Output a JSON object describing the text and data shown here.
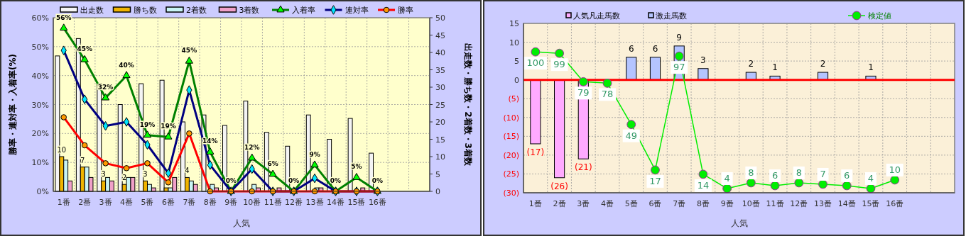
{
  "chart_data": [
    {
      "type": "bar",
      "categories": [
        "1番",
        "2番",
        "3番",
        "4番",
        "5番",
        "6番",
        "7番",
        "8番",
        "9番",
        "10番",
        "11番",
        "12番",
        "13番",
        "14番",
        "15番",
        "16番",
        null,
        null
      ],
      "xlabel": "人気",
      "ylabel": "勝率・連対率・入着率(%)",
      "y2label": "出走数・勝ち数・2着数・3着数",
      "ylim": [
        0,
        60
      ],
      "yticks": [
        {
          "value": 0,
          "label": "0%"
        },
        {
          "value": 10,
          "label": "10%"
        },
        {
          "value": 20,
          "label": "20%"
        },
        {
          "value": 30,
          "label": "30%"
        },
        {
          "value": 40,
          "label": "40%"
        },
        {
          "value": 50,
          "label": "50%"
        },
        {
          "value": 60,
          "label": "60%"
        }
      ],
      "y2lim": [
        0,
        50
      ],
      "y2ticks": [
        0,
        5,
        10,
        15,
        20,
        25,
        30,
        35,
        40,
        45,
        50
      ],
      "grid": true,
      "legend": "top",
      "series": [
        {
          "name": "出走数",
          "axis": "y2",
          "color": "#f4f4f4",
          "values": [
            39,
            44,
            31,
            25,
            31,
            32,
            20,
            22,
            19,
            26,
            17,
            13,
            22,
            15,
            21,
            11,
            null,
            null
          ]
        },
        {
          "name": "勝ち数",
          "axis": "y2",
          "color": "#f0b400",
          "values": [
            10,
            7,
            3,
            2,
            3,
            1,
            4,
            0,
            0,
            0,
            0,
            0,
            0,
            0,
            0,
            0,
            null,
            null
          ],
          "value_labels": [
            "10",
            "7",
            "3",
            "2",
            "3",
            null,
            "4",
            null,
            null,
            null,
            null,
            null,
            null,
            null,
            null,
            null,
            null,
            null
          ]
        },
        {
          "name": "2着数",
          "axis": "y2",
          "color": "#c8f4f4",
          "values": [
            9,
            7,
            4,
            4,
            2,
            1,
            3,
            2,
            0,
            2,
            0,
            0,
            1,
            0,
            0,
            0,
            null,
            null
          ]
        },
        {
          "name": "3着数",
          "axis": "y2",
          "color": "#f0a0c8",
          "values": [
            3,
            4,
            3,
            4,
            1,
            4,
            2,
            1,
            0,
            1,
            1,
            0,
            1,
            0,
            1,
            0,
            null,
            null
          ]
        },
        {
          "name": "入着率",
          "type": "line",
          "color": "#008000",
          "marker": "triangle",
          "values": [
            56.4,
            45.5,
            32.3,
            40,
            19.4,
            18.8,
            45,
            13.6,
            0,
            11.5,
            5.9,
            0,
            9.1,
            0,
            4.8,
            0,
            null,
            null
          ],
          "value_labels": [
            "56%",
            "45%",
            "32%",
            "40%",
            "19%",
            "19%",
            "45%",
            "14%",
            "0%",
            "12%",
            "6%",
            "0%",
            "9%",
            "0%",
            "5%",
            "0%",
            null,
            null
          ]
        },
        {
          "name": "連対率",
          "type": "line",
          "color": "#000080",
          "marker": "diamond",
          "values": [
            48.7,
            31.8,
            22.6,
            24,
            16.1,
            6.3,
            35,
            9.1,
            0,
            7.7,
            0,
            0,
            4.5,
            0,
            0,
            0,
            null,
            null
          ]
        },
        {
          "name": "勝率",
          "type": "line",
          "color": "#ff0000",
          "marker": "circle",
          "values": [
            25.6,
            15.9,
            9.7,
            8,
            9.7,
            3.1,
            20,
            0,
            0,
            0,
            0,
            0,
            0,
            0,
            0,
            0,
            null,
            null
          ]
        }
      ]
    },
    {
      "type": "bar",
      "stacked": true,
      "categories": [
        "1番",
        "2番",
        "3番",
        "4番",
        "5番",
        "6番",
        "7番",
        "8番",
        "9番",
        "10番",
        "11番",
        "12番",
        "13番",
        "14番",
        "15番",
        "16番",
        null,
        null
      ],
      "xlabel": "人気",
      "ylim": [
        -30,
        15
      ],
      "y2lim": [
        1,
        120
      ],
      "tick_labels": "xy",
      "data_labels": true,
      "yticks": [
        15,
        10,
        5,
        0,
        {
          "value": -5,
          "label": "(5)"
        },
        {
          "value": -10,
          "label": "(10)"
        },
        {
          "value": -15,
          "label": "(15)"
        },
        {
          "value": -20,
          "label": "(20)"
        },
        {
          "value": -25,
          "label": "(25)"
        },
        {
          "value": -30,
          "label": "(30)"
        }
      ],
      "grid": true,
      "legend": "top",
      "ref_lines": [
        {
          "axis": "y",
          "value": 0,
          "color": "#ff0000"
        }
      ],
      "series": [
        {
          "name": "人気凡走馬数",
          "color": "#ffaaff",
          "values": [
            -17,
            -26,
            -21,
            null,
            null,
            null,
            null,
            null,
            null,
            null,
            null,
            null,
            null,
            null,
            null,
            null,
            null,
            null
          ],
          "value_labels": [
            "(17)",
            "(26)",
            "(21)",
            null,
            null,
            null,
            null,
            null,
            null,
            null,
            null,
            null,
            null,
            null,
            null,
            null,
            null,
            null
          ]
        },
        {
          "name": "激走馬数",
          "color": "#b4c4ff",
          "values": [
            null,
            null,
            null,
            null,
            6,
            6,
            9,
            3,
            null,
            2,
            1,
            null,
            2,
            null,
            1,
            null,
            null,
            null
          ],
          "value_labels": [
            null,
            null,
            null,
            null,
            "6",
            "6",
            "9",
            "3",
            null,
            "2",
            "1",
            null,
            "2",
            null,
            "1",
            null,
            null,
            null
          ]
        },
        {
          "name": "検定値",
          "type": "line",
          "axis": "y2",
          "color": "#00ee00",
          "marker": "circle",
          "values": [
            100,
            99,
            79,
            78,
            49,
            17,
            97,
            14,
            4,
            8,
            6,
            8,
            7,
            6,
            4,
            10,
            null,
            null
          ]
        }
      ]
    }
  ]
}
